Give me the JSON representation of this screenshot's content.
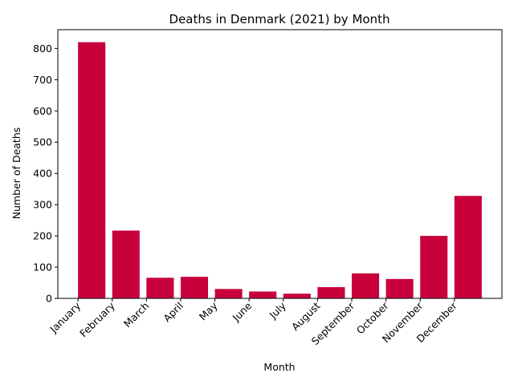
{
  "chart_data": {
    "type": "bar",
    "title": "Deaths in Denmark (2021) by Month",
    "xlabel": "Month",
    "ylabel": "Number of Deaths",
    "categories": [
      "January",
      "February",
      "March",
      "April",
      "May",
      "June",
      "July",
      "August",
      "September",
      "October",
      "November",
      "December"
    ],
    "values": [
      820,
      217,
      66,
      69,
      30,
      22,
      15,
      36,
      80,
      62,
      200,
      328
    ],
    "ylim": [
      0,
      860
    ],
    "yticks": [
      0,
      100,
      200,
      300,
      400,
      500,
      600,
      700,
      800
    ],
    "bar_color": "#c8003c",
    "grid": false,
    "legend": "none"
  }
}
